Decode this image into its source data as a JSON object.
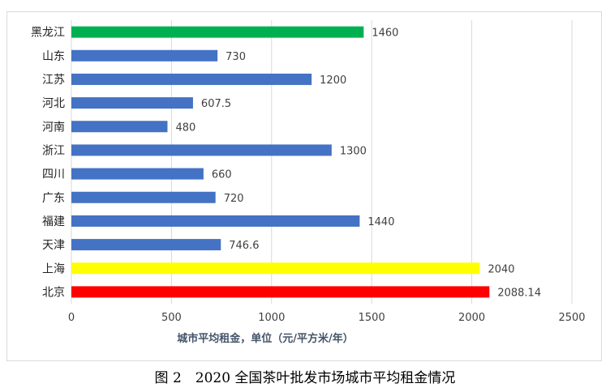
{
  "chart_data": {
    "type": "bar",
    "orientation": "horizontal",
    "categories": [
      "黑龙江",
      "山东",
      "江苏",
      "河北",
      "河南",
      "浙江",
      "四川",
      "广东",
      "福建",
      "天津",
      "上海",
      "北京"
    ],
    "values": [
      1460,
      730,
      1200,
      607.5,
      480,
      1300,
      660,
      720,
      1440,
      746.6,
      2040,
      2088.14
    ],
    "value_labels": [
      "1460",
      "730",
      "1200",
      "607.5",
      "480",
      "1300",
      "660",
      "720",
      "1440",
      "746.6",
      "2040",
      "2088.14"
    ],
    "colors": [
      "#00b050",
      "#4472c4",
      "#4472c4",
      "#4472c4",
      "#4472c4",
      "#4472c4",
      "#4472c4",
      "#4472c4",
      "#4472c4",
      "#4472c4",
      "#ffff00",
      "#ff0000"
    ],
    "xlabel": "城市平均租金，单位（元/平方米/年）",
    "xlim": [
      0,
      2500
    ],
    "xticks": [
      0,
      500,
      1000,
      1500,
      2000,
      2500
    ],
    "grid": "vertical",
    "legend": "none"
  },
  "caption": "图 2　2020 全国茶叶批发市场城市平均租金情况"
}
